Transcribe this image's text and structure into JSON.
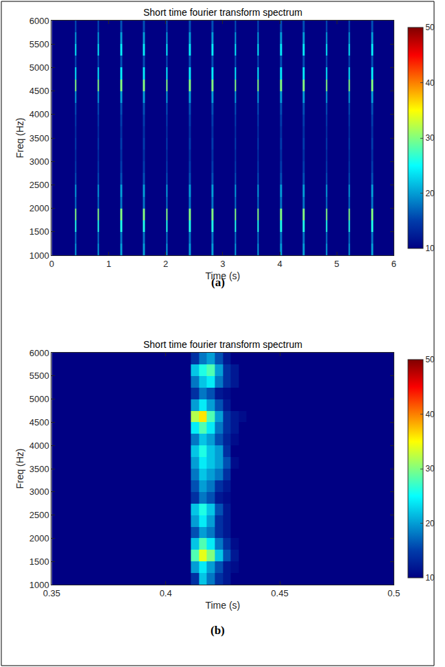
{
  "chart_data": [
    {
      "type": "heatmap",
      "title": "Short time fourier transform spectrum",
      "caption": "(a)",
      "x_label": "Time (s)",
      "y_label": "Freq (Hz)",
      "x": [
        0,
        0.405,
        0.435,
        0.805,
        0.835,
        1.205,
        1.235,
        1.605,
        1.635,
        2.005,
        2.035,
        2.405,
        2.435,
        2.805,
        2.835,
        3.205,
        3.235,
        3.605,
        3.635,
        4.005,
        4.035,
        4.405,
        4.435,
        4.805,
        4.835,
        5.205,
        5.235,
        5.605,
        5.635,
        6
      ],
      "y": [
        1000,
        1250,
        1500,
        1750,
        2000,
        2250,
        2500,
        2750,
        3000,
        3250,
        3500,
        3750,
        4000,
        4250,
        4500,
        4750,
        5000,
        5250,
        5500,
        5750,
        6000
      ],
      "z": [
        [
          10,
          20,
          10,
          20,
          10,
          20,
          10,
          20,
          10,
          20,
          10,
          20,
          10,
          20,
          10,
          20,
          10,
          20,
          10,
          20,
          10,
          20,
          10,
          20,
          10,
          20,
          10,
          20,
          10
        ],
        [
          10,
          18,
          10,
          18,
          10,
          18,
          10,
          18,
          10,
          18,
          10,
          18,
          10,
          18,
          10,
          18,
          10,
          18,
          10,
          18,
          10,
          18,
          10,
          18,
          10,
          18,
          10,
          18,
          10
        ],
        [
          10,
          26,
          10,
          26,
          10,
          26,
          10,
          26,
          10,
          26,
          10,
          26,
          10,
          26,
          10,
          26,
          10,
          26,
          10,
          26,
          10,
          26,
          10,
          26,
          10,
          26,
          10,
          26,
          10
        ],
        [
          10,
          30,
          10,
          30,
          10,
          30,
          10,
          30,
          10,
          30,
          10,
          30,
          10,
          30,
          10,
          30,
          10,
          30,
          10,
          30,
          10,
          30,
          10,
          30,
          10,
          30,
          10,
          30,
          10
        ],
        [
          10,
          18,
          10,
          18,
          10,
          18,
          10,
          18,
          10,
          18,
          10,
          18,
          10,
          18,
          10,
          18,
          10,
          18,
          10,
          18,
          10,
          18,
          10,
          18,
          10,
          18,
          10,
          18,
          10
        ],
        [
          10,
          20,
          10,
          20,
          10,
          20,
          10,
          20,
          10,
          20,
          10,
          20,
          10,
          20,
          10,
          20,
          10,
          20,
          10,
          20,
          10,
          20,
          10,
          20,
          10,
          20,
          10,
          20,
          10
        ],
        [
          10,
          16,
          10,
          16,
          10,
          16,
          10,
          16,
          10,
          16,
          10,
          16,
          10,
          16,
          10,
          16,
          10,
          16,
          10,
          16,
          10,
          16,
          10,
          16,
          10,
          16,
          10,
          16,
          10
        ],
        [
          10,
          15,
          10,
          15,
          10,
          15,
          10,
          15,
          10,
          15,
          10,
          15,
          10,
          15,
          10,
          15,
          10,
          15,
          10,
          15,
          10,
          15,
          10,
          15,
          10,
          15,
          10,
          15,
          10
        ],
        [
          10,
          14,
          10,
          14,
          10,
          14,
          10,
          14,
          10,
          14,
          10,
          14,
          10,
          14,
          10,
          14,
          10,
          14,
          10,
          14,
          10,
          14,
          10,
          14,
          10,
          14,
          10,
          14,
          10
        ],
        [
          10,
          15,
          10,
          15,
          10,
          15,
          10,
          15,
          10,
          15,
          10,
          15,
          10,
          15,
          10,
          15,
          10,
          15,
          10,
          15,
          10,
          15,
          10,
          15,
          10,
          15,
          10,
          15,
          10
        ],
        [
          10,
          14,
          10,
          14,
          10,
          14,
          10,
          14,
          10,
          14,
          10,
          14,
          10,
          14,
          10,
          14,
          10,
          14,
          10,
          14,
          10,
          14,
          10,
          14,
          10,
          14,
          10,
          14,
          10
        ],
        [
          10,
          15,
          10,
          15,
          10,
          15,
          10,
          15,
          10,
          15,
          10,
          15,
          10,
          15,
          10,
          15,
          10,
          15,
          10,
          15,
          10,
          15,
          10,
          15,
          10,
          15,
          10,
          15,
          10
        ],
        [
          10,
          16,
          10,
          16,
          10,
          16,
          10,
          16,
          10,
          16,
          10,
          16,
          10,
          16,
          10,
          16,
          10,
          16,
          10,
          16,
          10,
          16,
          10,
          16,
          10,
          16,
          10,
          16,
          10
        ],
        [
          10,
          20,
          10,
          20,
          10,
          20,
          10,
          20,
          10,
          20,
          10,
          20,
          10,
          20,
          10,
          20,
          10,
          20,
          10,
          20,
          10,
          20,
          10,
          20,
          10,
          20,
          10,
          20,
          10
        ],
        [
          10,
          30,
          10,
          30,
          10,
          30,
          10,
          30,
          10,
          30,
          10,
          30,
          10,
          30,
          10,
          30,
          10,
          30,
          10,
          30,
          10,
          30,
          10,
          30,
          10,
          30,
          10,
          30,
          10
        ],
        [
          10,
          24,
          10,
          24,
          10,
          24,
          10,
          24,
          10,
          24,
          10,
          24,
          10,
          24,
          10,
          24,
          10,
          24,
          10,
          24,
          10,
          24,
          10,
          24,
          10,
          24,
          10,
          24,
          10
        ],
        [
          10,
          16,
          10,
          16,
          10,
          16,
          10,
          16,
          10,
          16,
          10,
          16,
          10,
          16,
          10,
          16,
          10,
          16,
          10,
          16,
          10,
          16,
          10,
          16,
          10,
          16,
          10,
          16,
          10
        ],
        [
          10,
          24,
          10,
          24,
          10,
          24,
          10,
          24,
          10,
          24,
          10,
          24,
          10,
          24,
          10,
          24,
          10,
          24,
          10,
          24,
          10,
          24,
          10,
          24,
          10,
          24,
          10,
          24,
          10
        ],
        [
          10,
          20,
          10,
          20,
          10,
          20,
          10,
          20,
          10,
          20,
          10,
          20,
          10,
          20,
          10,
          20,
          10,
          20,
          10,
          20,
          10,
          20,
          10,
          20,
          10,
          20,
          10,
          20,
          10
        ],
        [
          10,
          16,
          10,
          16,
          10,
          16,
          10,
          16,
          10,
          16,
          10,
          16,
          10,
          16,
          10,
          16,
          10,
          16,
          10,
          16,
          10,
          16,
          10,
          16,
          10,
          16,
          10,
          16,
          10
        ]
      ],
      "xlim": [
        0,
        6
      ],
      "ylim": [
        1000,
        6000
      ],
      "xticks": [
        0,
        1,
        2,
        3,
        4,
        5,
        6
      ],
      "yticks": [
        1000,
        1500,
        2000,
        2500,
        3000,
        3500,
        4000,
        4500,
        5000,
        5500,
        6000
      ],
      "zlim": [
        10,
        50
      ],
      "zticks": [
        10,
        20,
        30,
        40,
        50
      ]
    },
    {
      "type": "heatmap",
      "title": "Short time fourier transform spectrum",
      "caption": "(b)",
      "x_label": "Time (s)",
      "y_label": "Freq (Hz)",
      "x": [
        0.35,
        0.411,
        0.4145,
        0.418,
        0.4215,
        0.425,
        0.4285,
        0.432,
        0.4355,
        0.5
      ],
      "y": [
        1000,
        1250,
        1500,
        1750,
        2000,
        2250,
        2500,
        2750,
        3000,
        3250,
        3500,
        3750,
        4000,
        4250,
        4500,
        4750,
        5000,
        5250,
        5500,
        5750,
        6000
      ],
      "z": [
        [
          10,
          14,
          22,
          18,
          14,
          12,
          10,
          10,
          10
        ],
        [
          10,
          20,
          24,
          20,
          16,
          12,
          11,
          10,
          10
        ],
        [
          10,
          28,
          34,
          30,
          22,
          16,
          12,
          10,
          10
        ],
        [
          10,
          22,
          28,
          24,
          18,
          14,
          11,
          10,
          10
        ],
        [
          10,
          16,
          20,
          18,
          14,
          12,
          10,
          10,
          10
        ],
        [
          10,
          20,
          24,
          20,
          14,
          12,
          10,
          10,
          10
        ],
        [
          10,
          22,
          26,
          22,
          16,
          12,
          10,
          10,
          10
        ],
        [
          10,
          14,
          18,
          16,
          12,
          11,
          10,
          10,
          10
        ],
        [
          10,
          16,
          20,
          18,
          14,
          12,
          10,
          10,
          10
        ],
        [
          10,
          18,
          22,
          20,
          18,
          14,
          10,
          10,
          10
        ],
        [
          10,
          20,
          24,
          22,
          20,
          16,
          11,
          10,
          10
        ],
        [
          10,
          22,
          26,
          22,
          20,
          14,
          10,
          10,
          10
        ],
        [
          10,
          18,
          22,
          20,
          16,
          13,
          11,
          10,
          10
        ],
        [
          10,
          24,
          28,
          24,
          18,
          14,
          12,
          10,
          10
        ],
        [
          10,
          32,
          36,
          28,
          20,
          14,
          12,
          11,
          10
        ],
        [
          10,
          20,
          24,
          20,
          16,
          12,
          10,
          10,
          10
        ],
        [
          10,
          14,
          18,
          16,
          12,
          11,
          10,
          10,
          10
        ],
        [
          10,
          18,
          22,
          24,
          18,
          14,
          12,
          10,
          10
        ],
        [
          10,
          22,
          26,
          28,
          20,
          14,
          12,
          10,
          10
        ],
        [
          10,
          14,
          18,
          20,
          16,
          12,
          10,
          10,
          10
        ]
      ],
      "xlim": [
        0.35,
        0.5
      ],
      "ylim": [
        1000,
        6000
      ],
      "xticks": [
        0.35,
        0.4,
        0.45,
        0.5
      ],
      "yticks": [
        1000,
        1500,
        2000,
        2500,
        3000,
        3500,
        4000,
        4500,
        5000,
        5500,
        6000
      ],
      "zlim": [
        10,
        50
      ],
      "zticks": [
        10,
        20,
        30,
        40,
        50
      ]
    }
  ]
}
